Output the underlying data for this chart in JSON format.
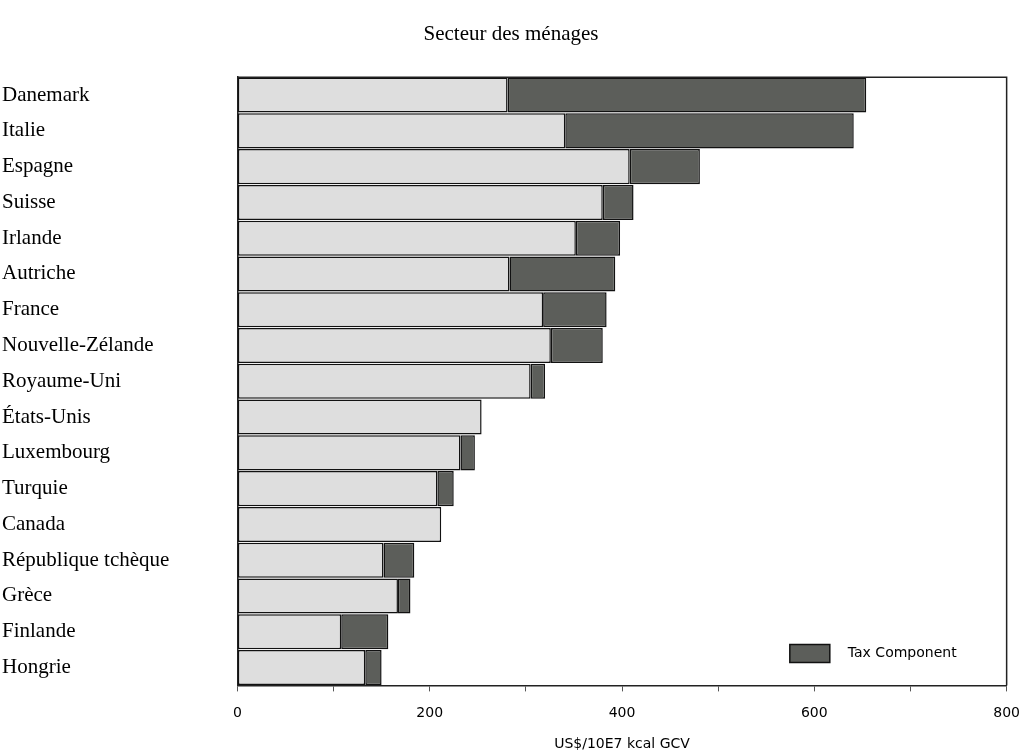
{
  "chart_data": {
    "type": "bar",
    "orientation": "horizontal",
    "stacked": true,
    "title": "Secteur des ménages",
    "xlabel": "US$/10E7 kcal GCV",
    "categories": [
      "Danemark",
      "Italie",
      "Espagne",
      "Suisse",
      "Irlande",
      "Autriche",
      "France",
      "Nouvelle-Zélande",
      "Royaume-Uni",
      "États-Unis",
      "Luxembourg",
      "Turquie",
      "Canada",
      "République tchèque",
      "Grèce",
      "Finlande",
      "Hongrie"
    ],
    "series": [
      {
        "color": "#dedede",
        "values": [
          281,
          341,
          408,
          380,
          352,
          283,
          318,
          326,
          305,
          254,
          232,
          208,
          212,
          152,
          167,
          108,
          133
        ]
      },
      {
        "name": "Tax Component",
        "color": "#5c5e5a",
        "values": [
          373,
          300,
          73,
          32,
          46,
          110,
          66,
          54,
          15,
          0,
          15,
          17,
          0,
          32,
          13,
          49,
          17
        ]
      }
    ],
    "xlim": [
      0,
      800
    ],
    "xticks": [
      0,
      {
        "value": 100,
        "label": null
      },
      200,
      {
        "value": 300,
        "label": null
      },
      400,
      {
        "value": 500,
        "label": null
      },
      600,
      {
        "value": 700,
        "label": null
      },
      800
    ],
    "grid": false,
    "legend": "bottom right"
  }
}
